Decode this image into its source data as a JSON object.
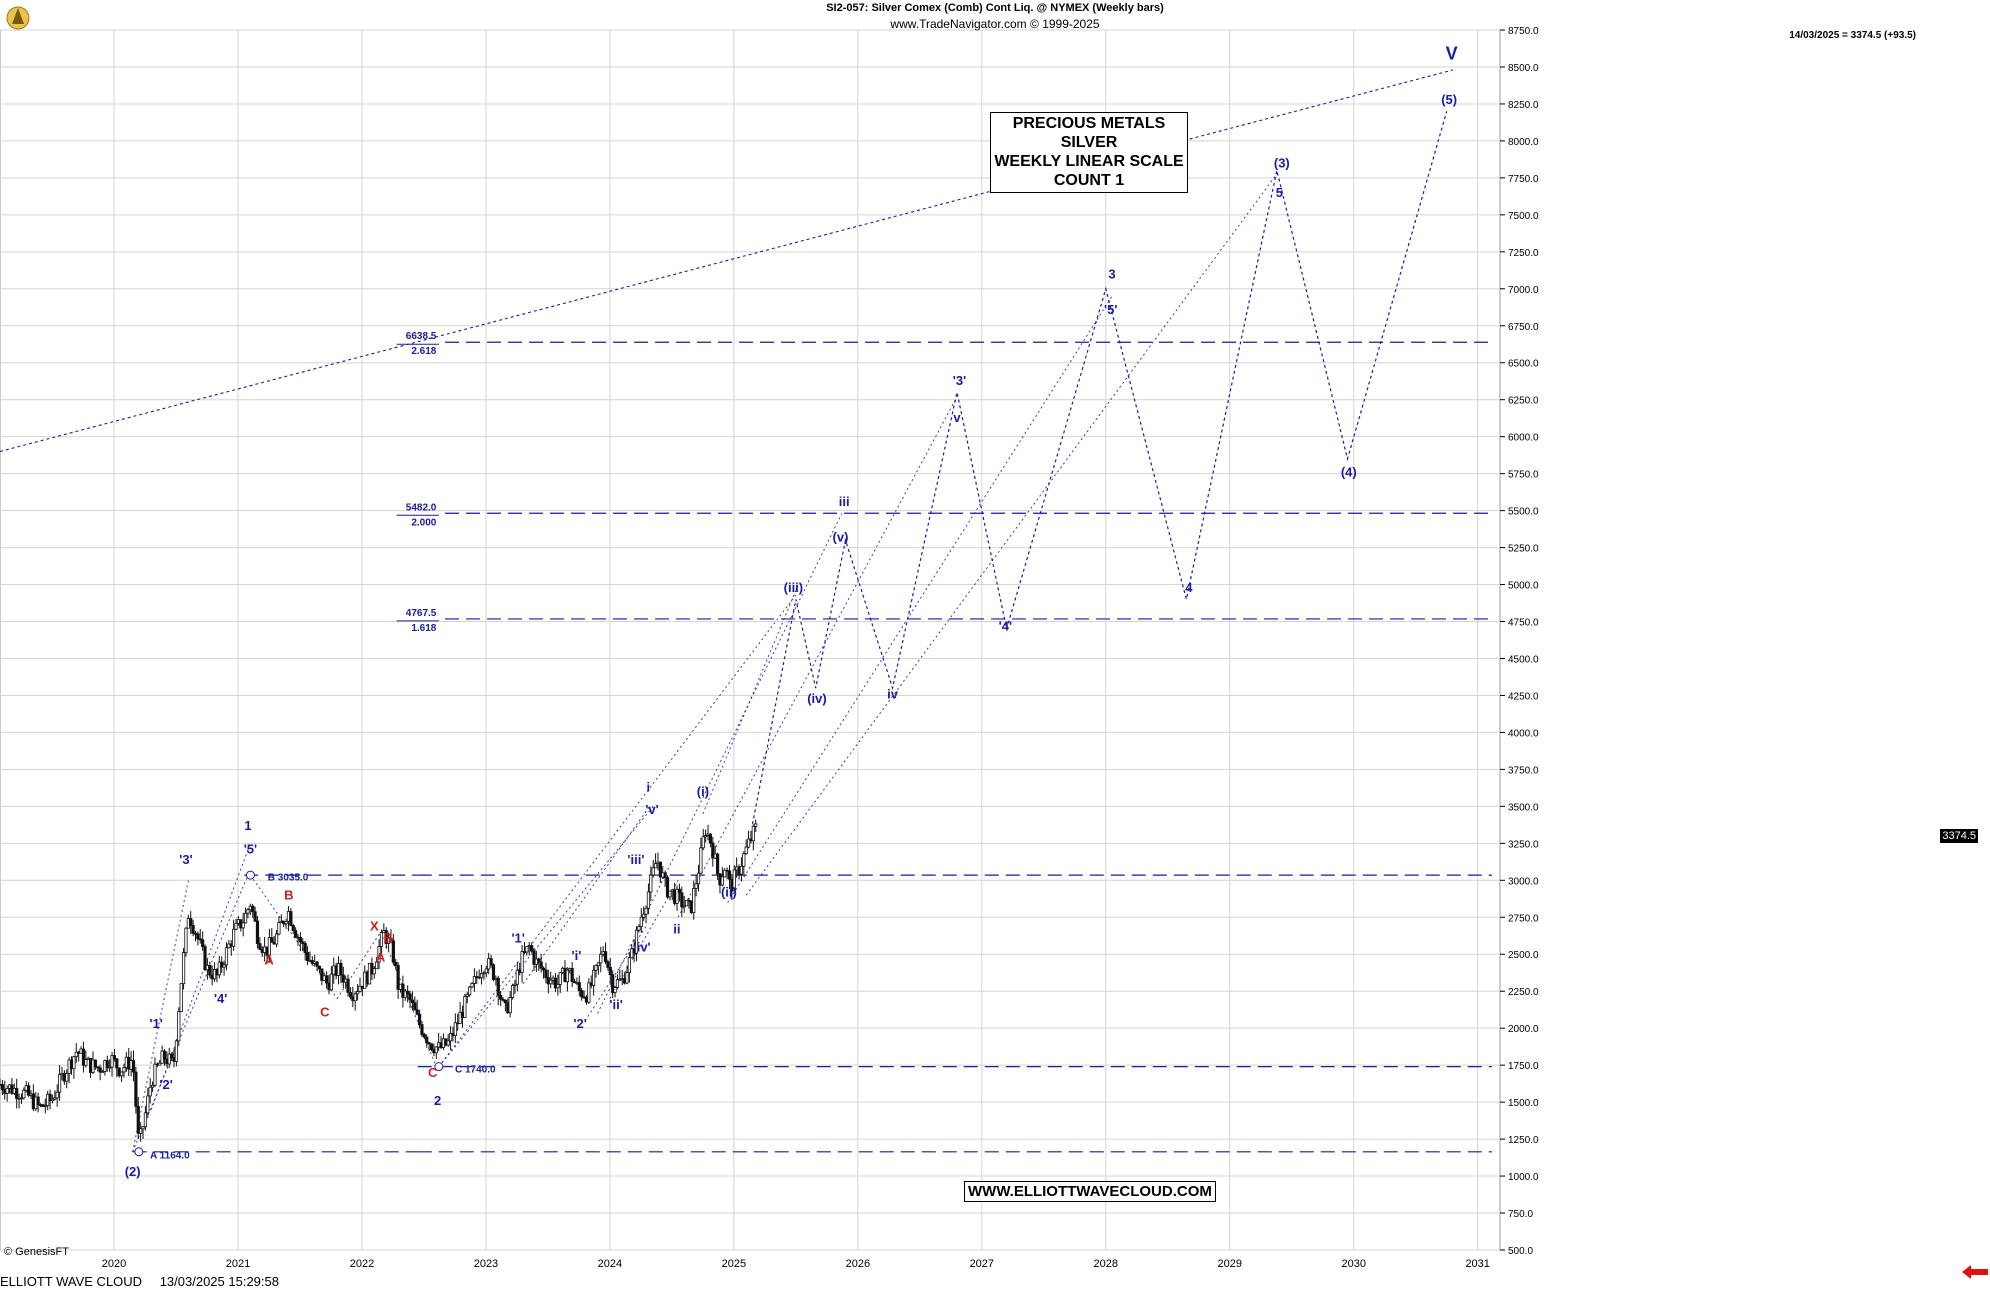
{
  "header": {
    "title": "SI2-057:  Silver Comex (Comb) Cont Liq. @ NYMEX  (Weekly bars)",
    "subtitle": "www.TradeNavigator.com © 1999-2025",
    "last_quote": "14/03/2025 = 3374.5 (+93.5)"
  },
  "info_box": {
    "lines": [
      "PRECIOUS METALS",
      "SILVER",
      "WEEKLY LINEAR SCALE",
      "COUNT 1"
    ]
  },
  "website": "WWW.ELLIOTTWAVECLOUD.COM",
  "watermark": "© GenesisFT",
  "footer": {
    "brand": "ELLIOTT WAVE CLOUD",
    "timestamp": "13/03/2025 15:29:58"
  },
  "price_tag": "3374.5",
  "colors": {
    "wave_blue": "#1a1aa8",
    "correction_red": "#cc2020",
    "candle": "#111111",
    "grid": "#d4d4d4",
    "nav_arrow": "#dd1111"
  },
  "chart_data": {
    "type": "candlestick",
    "title": "SI2-057:  Silver Comex (Comb) Cont Liq. @ NYMEX  (Weekly bars)",
    "x_axis": {
      "type": "time",
      "range": [
        2019.08,
        2031.18
      ],
      "tick_labels": [
        "2020",
        "2021",
        "2022",
        "2023",
        "2024",
        "2025",
        "2026",
        "2027",
        "2028",
        "2029",
        "2030",
        "2031"
      ]
    },
    "y_axis": {
      "range": [
        500,
        8750
      ],
      "side": "right",
      "tick_labels": [
        "500.0",
        "750.0",
        "1000.0",
        "1250.0",
        "1500.0",
        "1750.0",
        "2000.0",
        "2250.0",
        "2500.0",
        "2750.0",
        "3000.0",
        "3250.0",
        "3500.0",
        "3750.0",
        "4000.0",
        "4250.0",
        "4500.0",
        "4750.0",
        "5000.0",
        "5250.0",
        "5500.0",
        "5750.0",
        "6000.0",
        "6250.0",
        "6500.0",
        "6750.0",
        "7000.0",
        "7250.0",
        "7500.0",
        "7750.0",
        "8000.0",
        "8250.0",
        "8500.0",
        "8750.0"
      ]
    },
    "grid": true,
    "price_path": [
      [
        2019.08,
        1620
      ],
      [
        2019.15,
        1600
      ],
      [
        2019.3,
        1550
      ],
      [
        2019.4,
        1460
      ],
      [
        2019.5,
        1520
      ],
      [
        2019.6,
        1700
      ],
      [
        2019.7,
        1850
      ],
      [
        2019.78,
        1760
      ],
      [
        2019.88,
        1730
      ],
      [
        2019.97,
        1800
      ],
      [
        2020.05,
        1720
      ],
      [
        2020.15,
        1790
      ],
      [
        2020.2,
        1200
      ],
      [
        2020.26,
        1450
      ],
      [
        2020.3,
        1650
      ],
      [
        2020.4,
        1810
      ],
      [
        2020.48,
        1750
      ],
      [
        2020.55,
        2400
      ],
      [
        2020.6,
        2780
      ],
      [
        2020.66,
        2650
      ],
      [
        2020.75,
        2400
      ],
      [
        2020.83,
        2350
      ],
      [
        2020.9,
        2500
      ],
      [
        2020.97,
        2650
      ],
      [
        2021.05,
        2740
      ],
      [
        2021.1,
        2850
      ],
      [
        2021.16,
        2620
      ],
      [
        2021.22,
        2520
      ],
      [
        2021.3,
        2600
      ],
      [
        2021.4,
        2800
      ],
      [
        2021.47,
        2650
      ],
      [
        2021.55,
        2500
      ],
      [
        2021.63,
        2400
      ],
      [
        2021.72,
        2300
      ],
      [
        2021.8,
        2400
      ],
      [
        2021.85,
        2350
      ],
      [
        2021.92,
        2240
      ],
      [
        2022.0,
        2310
      ],
      [
        2022.08,
        2400
      ],
      [
        2022.18,
        2650
      ],
      [
        2022.25,
        2500
      ],
      [
        2022.3,
        2250
      ],
      [
        2022.38,
        2200
      ],
      [
        2022.45,
        2050
      ],
      [
        2022.55,
        1900
      ],
      [
        2022.62,
        1860
      ],
      [
        2022.7,
        1900
      ],
      [
        2022.8,
        2100
      ],
      [
        2022.88,
        2250
      ],
      [
        2022.95,
        2400
      ],
      [
        2023.0,
        2450
      ],
      [
        2023.08,
        2350
      ],
      [
        2023.15,
        2100
      ],
      [
        2023.22,
        2250
      ],
      [
        2023.28,
        2450
      ],
      [
        2023.35,
        2550
      ],
      [
        2023.4,
        2450
      ],
      [
        2023.5,
        2350
      ],
      [
        2023.58,
        2300
      ],
      [
        2023.66,
        2400
      ],
      [
        2023.75,
        2250
      ],
      [
        2023.82,
        2230
      ],
      [
        2023.9,
        2400
      ],
      [
        2023.95,
        2550
      ],
      [
        2024.02,
        2300
      ],
      [
        2024.1,
        2320
      ],
      [
        2024.18,
        2500
      ],
      [
        2024.25,
        2750
      ],
      [
        2024.32,
        2950
      ],
      [
        2024.38,
        3150
      ],
      [
        2024.45,
        2950
      ],
      [
        2024.52,
        2900
      ],
      [
        2024.58,
        2850
      ],
      [
        2024.65,
        2800
      ],
      [
        2024.72,
        3100
      ],
      [
        2024.77,
        3350
      ],
      [
        2024.82,
        3250
      ],
      [
        2024.88,
        3000
      ],
      [
        2024.93,
        3100
      ],
      [
        2024.97,
        2950
      ],
      [
        2025.05,
        3100
      ],
      [
        2025.12,
        3250
      ],
      [
        2025.19,
        3374.5
      ]
    ],
    "support_levels": [
      {
        "price": 3035.0
      },
      {
        "price": 1740.0
      },
      {
        "price": 1164.0
      }
    ],
    "fibonacci_levels": [
      {
        "price": 6638.5,
        "label": "6638.5",
        "ratio": "2.618"
      },
      {
        "price": 5482.0,
        "label": "5482.0",
        "ratio": "2.000"
      },
      {
        "price": 4767.5,
        "label": "4767.5",
        "ratio": "1.618"
      }
    ],
    "projection_path": [
      [
        2025.15,
        3380
      ],
      [
        2025.5,
        4900
      ],
      [
        2025.66,
        4300
      ],
      [
        2025.9,
        5300
      ],
      [
        2026.28,
        4300
      ],
      [
        2026.8,
        6300
      ],
      [
        2027.2,
        4700
      ],
      [
        2028.0,
        7000
      ],
      [
        2028.65,
        4900
      ],
      [
        2029.38,
        7800
      ],
      [
        2029.95,
        5850
      ],
      [
        2030.75,
        8200
      ]
    ],
    "trend_line": {
      "from": [
        2019.08,
        5900
      ],
      "to": [
        2030.8,
        8480
      ]
    },
    "wave_labels": [
      {
        "text": "(2)",
        "x": 2020.15,
        "y": 1000,
        "color": "blue"
      },
      {
        "text": "A 1164.0",
        "x": 2020.29,
        "y": 1120,
        "color": "blue",
        "small": true
      },
      {
        "text": "'1'",
        "x": 2020.34,
        "y": 2000,
        "color": "blue"
      },
      {
        "text": "'2'",
        "x": 2020.42,
        "y": 1590,
        "color": "blue"
      },
      {
        "text": "'3'",
        "x": 2020.58,
        "y": 3110,
        "color": "blue"
      },
      {
        "text": "'4'",
        "x": 2020.86,
        "y": 2170,
        "color": "blue"
      },
      {
        "text": "1",
        "x": 2021.08,
        "y": 3340,
        "color": "blue"
      },
      {
        "text": "'5'",
        "x": 2021.1,
        "y": 3180,
        "color": "blue"
      },
      {
        "text": "B 3035.0",
        "x": 2021.24,
        "y": 3000,
        "color": "blue",
        "small": true
      },
      {
        "text": "B",
        "x": 2021.41,
        "y": 2870,
        "color": "red"
      },
      {
        "text": "A",
        "x": 2021.25,
        "y": 2430,
        "color": "red"
      },
      {
        "text": "C",
        "x": 2021.7,
        "y": 2080,
        "color": "red"
      },
      {
        "text": "X",
        "x": 2022.1,
        "y": 2660,
        "color": "red"
      },
      {
        "text": "B",
        "x": 2022.21,
        "y": 2580,
        "color": "red"
      },
      {
        "text": "A",
        "x": 2022.15,
        "y": 2450,
        "color": "red"
      },
      {
        "text": "C",
        "x": 2022.57,
        "y": 1670,
        "color": "red"
      },
      {
        "text": "C 1740.0",
        "x": 2022.75,
        "y": 1700,
        "color": "blue",
        "small": true
      },
      {
        "text": "2",
        "x": 2022.61,
        "y": 1480,
        "color": "blue"
      },
      {
        "text": "'1'",
        "x": 2023.26,
        "y": 2580,
        "color": "blue"
      },
      {
        "text": "'i'",
        "x": 2023.73,
        "y": 2460,
        "color": "blue"
      },
      {
        "text": "'2'",
        "x": 2023.76,
        "y": 2000,
        "color": "blue"
      },
      {
        "text": "'ii'",
        "x": 2024.05,
        "y": 2130,
        "color": "blue"
      },
      {
        "text": "'iii'",
        "x": 2024.21,
        "y": 3110,
        "color": "blue"
      },
      {
        "text": "'iv'",
        "x": 2024.26,
        "y": 2520,
        "color": "blue"
      },
      {
        "text": "i",
        "x": 2024.31,
        "y": 3600,
        "color": "blue"
      },
      {
        "text": "'v'",
        "x": 2024.34,
        "y": 3450,
        "color": "blue"
      },
      {
        "text": "ii",
        "x": 2024.54,
        "y": 2640,
        "color": "blue"
      },
      {
        "text": "(i)",
        "x": 2024.75,
        "y": 3570,
        "color": "blue"
      },
      {
        "text": "(ii)",
        "x": 2024.96,
        "y": 2890,
        "color": "blue"
      },
      {
        "text": "(iii)",
        "x": 2025.48,
        "y": 4950,
        "color": "blue"
      },
      {
        "text": "(iv)",
        "x": 2025.67,
        "y": 4200,
        "color": "blue"
      },
      {
        "text": "iii",
        "x": 2025.89,
        "y": 5530,
        "color": "blue"
      },
      {
        "text": "(v)",
        "x": 2025.86,
        "y": 5290,
        "color": "blue"
      },
      {
        "text": "iv",
        "x": 2026.28,
        "y": 4230,
        "color": "blue"
      },
      {
        "text": "'3'",
        "x": 2026.82,
        "y": 6350,
        "color": "blue"
      },
      {
        "text": "v",
        "x": 2026.8,
        "y": 6100,
        "color": "blue"
      },
      {
        "text": "'4'",
        "x": 2027.19,
        "y": 4690,
        "color": "blue"
      },
      {
        "text": "3",
        "x": 2028.05,
        "y": 7070,
        "color": "blue"
      },
      {
        "text": "'5'",
        "x": 2028.04,
        "y": 6830,
        "color": "blue"
      },
      {
        "text": "4",
        "x": 2028.67,
        "y": 4950,
        "color": "blue"
      },
      {
        "text": "(3)",
        "x": 2029.42,
        "y": 7820,
        "color": "blue"
      },
      {
        "text": "5",
        "x": 2029.4,
        "y": 7620,
        "color": "blue"
      },
      {
        "text": "(4)",
        "x": 2029.96,
        "y": 5730,
        "color": "blue"
      },
      {
        "text": "(5)",
        "x": 2030.77,
        "y": 8250,
        "color": "blue"
      },
      {
        "text": "V",
        "x": 2030.79,
        "y": 8550,
        "color": "blue",
        "large": true
      }
    ]
  }
}
